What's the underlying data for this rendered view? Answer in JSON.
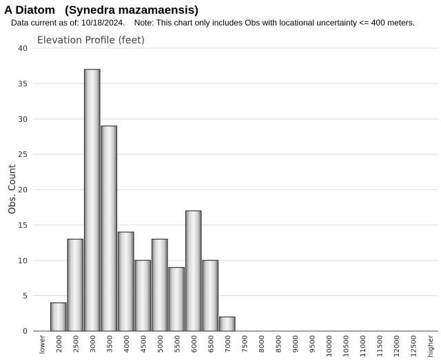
{
  "header": {
    "title": "A Diatom   (Synedra mazamaensis)",
    "subtitle": "Data current as of: 10/18/2024.    Note: This chart only includes Obs with locational uncertainty <= 400 meters."
  },
  "chart_data": {
    "type": "bar",
    "title": "Elevation Profile (feet)",
    "xlabel": "",
    "ylabel": "Obs. Count",
    "ylim": [
      0,
      40
    ],
    "yticks": [
      0,
      5,
      10,
      15,
      20,
      25,
      30,
      35,
      40
    ],
    "grid": true,
    "categories": [
      "lower",
      "2000",
      "2500",
      "3000",
      "3500",
      "4000",
      "4500",
      "5000",
      "5500",
      "6000",
      "6500",
      "7000",
      "7500",
      "8000",
      "8500",
      "9000",
      "9500",
      "10000",
      "10500",
      "11000",
      "11500",
      "12000",
      "12500",
      "higher"
    ],
    "values": [
      0,
      4,
      13,
      37,
      29,
      14,
      10,
      13,
      9,
      17,
      10,
      2,
      0,
      0,
      0,
      0,
      0,
      0,
      0,
      0,
      0,
      0,
      0,
      0
    ],
    "bar_color": "#c8c8c8"
  }
}
